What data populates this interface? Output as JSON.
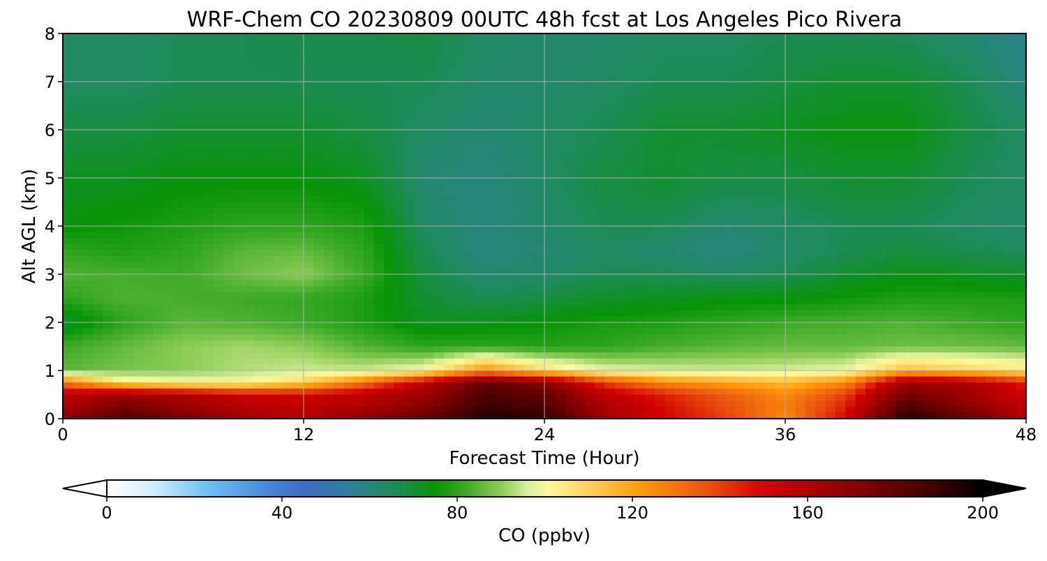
{
  "chart_data": {
    "type": "heatmap",
    "title": "WRF-Chem CO  20230809 00UTC 48h fcst at Los Angeles Pico Rivera",
    "xlabel": "Forecast Time (Hour)",
    "ylabel": "Alt AGL (km)",
    "xlim": [
      0,
      48
    ],
    "ylim": [
      0,
      8
    ],
    "xticks": [
      0,
      12,
      24,
      36,
      48
    ],
    "yticks": [
      0,
      1,
      2,
      3,
      4,
      5,
      6,
      7,
      8
    ],
    "grid": true,
    "colorbar": {
      "label": "CO  (ppbv)",
      "min": 0,
      "max": 200,
      "ticks": [
        0,
        40,
        80,
        120,
        160,
        200
      ],
      "extend": "both",
      "stops": [
        {
          "value": 0,
          "color": "#ffffff"
        },
        {
          "value": 10,
          "color": "#d6eefb"
        },
        {
          "value": 22,
          "color": "#6fc6f5"
        },
        {
          "value": 35,
          "color": "#4a8fdc"
        },
        {
          "value": 45,
          "color": "#3a6cc4"
        },
        {
          "value": 55,
          "color": "#2e7f9f"
        },
        {
          "value": 65,
          "color": "#1f8a5c"
        },
        {
          "value": 75,
          "color": "#079406"
        },
        {
          "value": 83,
          "color": "#45ad2c"
        },
        {
          "value": 90,
          "color": "#8ccc55"
        },
        {
          "value": 96,
          "color": "#d8ee9a"
        },
        {
          "value": 101,
          "color": "#fff89a"
        },
        {
          "value": 110,
          "color": "#ffd060"
        },
        {
          "value": 122,
          "color": "#ff9a0a"
        },
        {
          "value": 138,
          "color": "#e84e10"
        },
        {
          "value": 150,
          "color": "#d20000"
        },
        {
          "value": 170,
          "color": "#8a0000"
        },
        {
          "value": 190,
          "color": "#3a0000"
        },
        {
          "value": 200,
          "color": "#000000"
        }
      ]
    },
    "grid_x": [
      0,
      3,
      6,
      9,
      12,
      15,
      18,
      21,
      24,
      27,
      30,
      33,
      36,
      39,
      42,
      45,
      48
    ],
    "grid_y": [
      0,
      0.25,
      0.5,
      0.75,
      1,
      1.5,
      2,
      2.5,
      3,
      3.5,
      4,
      5,
      6,
      7,
      8
    ],
    "values": [
      [
        170,
        185,
        175,
        165,
        160,
        170,
        180,
        195,
        192,
        165,
        150,
        140,
        125,
        150,
        195,
        180,
        160
      ],
      [
        160,
        175,
        165,
        158,
        155,
        160,
        170,
        190,
        185,
        160,
        148,
        138,
        128,
        145,
        185,
        170,
        155
      ],
      [
        155,
        165,
        160,
        152,
        150,
        155,
        165,
        185,
        180,
        155,
        145,
        135,
        125,
        140,
        175,
        165,
        150
      ],
      [
        130,
        105,
        100,
        100,
        110,
        130,
        155,
        180,
        170,
        140,
        125,
        120,
        115,
        125,
        165,
        160,
        145
      ],
      [
        85,
        88,
        90,
        93,
        95,
        95,
        100,
        125,
        108,
        98,
        96,
        95,
        96,
        98,
        115,
        110,
        105
      ],
      [
        82,
        86,
        90,
        92,
        90,
        84,
        80,
        80,
        79,
        80,
        83,
        85,
        86,
        86,
        87,
        87,
        86
      ],
      [
        70,
        80,
        85,
        84,
        82,
        78,
        72,
        73,
        75,
        77,
        78,
        80,
        82,
        83,
        84,
        82,
        80
      ],
      [
        80,
        84,
        83,
        82,
        81,
        78,
        70,
        66,
        68,
        71,
        72,
        74,
        74,
        76,
        78,
        78,
        78
      ],
      [
        84,
        83,
        82,
        87,
        90,
        82,
        68,
        62,
        63,
        66,
        66,
        64,
        66,
        70,
        73,
        72,
        70
      ],
      [
        80,
        78,
        80,
        85,
        86,
        80,
        66,
        60,
        62,
        64,
        62,
        60,
        63,
        66,
        68,
        66,
        65
      ],
      [
        74,
        76,
        78,
        80,
        80,
        78,
        64,
        60,
        63,
        66,
        66,
        62,
        64,
        66,
        66,
        64,
        63
      ],
      [
        72,
        72,
        74,
        74,
        74,
        72,
        62,
        60,
        64,
        68,
        70,
        68,
        68,
        70,
        70,
        66,
        64
      ],
      [
        68,
        68,
        70,
        70,
        70,
        68,
        64,
        62,
        64,
        66,
        70,
        70,
        72,
        74,
        74,
        68,
        64
      ],
      [
        64,
        64,
        66,
        66,
        66,
        66,
        66,
        63,
        63,
        64,
        66,
        66,
        68,
        70,
        70,
        66,
        60
      ],
      [
        64,
        64,
        66,
        66,
        67,
        67,
        68,
        64,
        63,
        63,
        64,
        64,
        66,
        66,
        65,
        62,
        58
      ]
    ]
  }
}
